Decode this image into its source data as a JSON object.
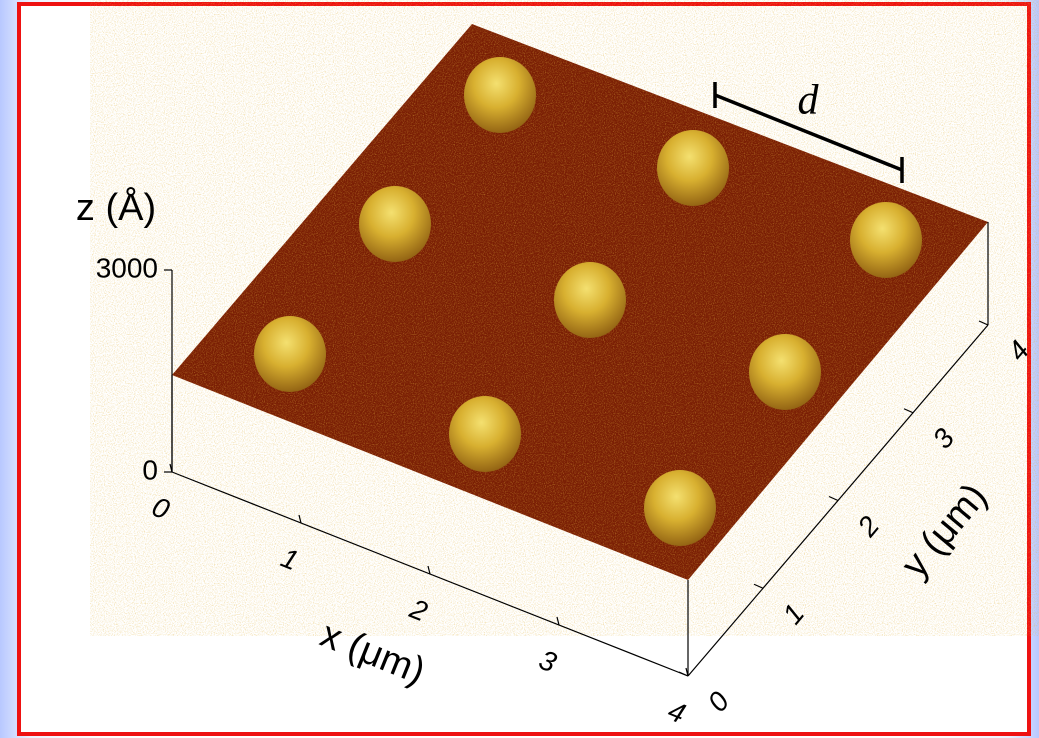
{
  "chart_data": {
    "type": "surface3d",
    "xlabel": "x (μm)",
    "ylabel": "y (μm)",
    "zlabel": "z (Å)",
    "xlim": [
      0,
      4
    ],
    "ylim": [
      0,
      4
    ],
    "zlim": [
      0,
      3000
    ],
    "xticks": [
      0,
      1,
      2,
      3,
      4
    ],
    "yticks": [
      0,
      1,
      2,
      3,
      4
    ],
    "zticks": [
      0,
      3000
    ],
    "annotation": "d"
  }
}
